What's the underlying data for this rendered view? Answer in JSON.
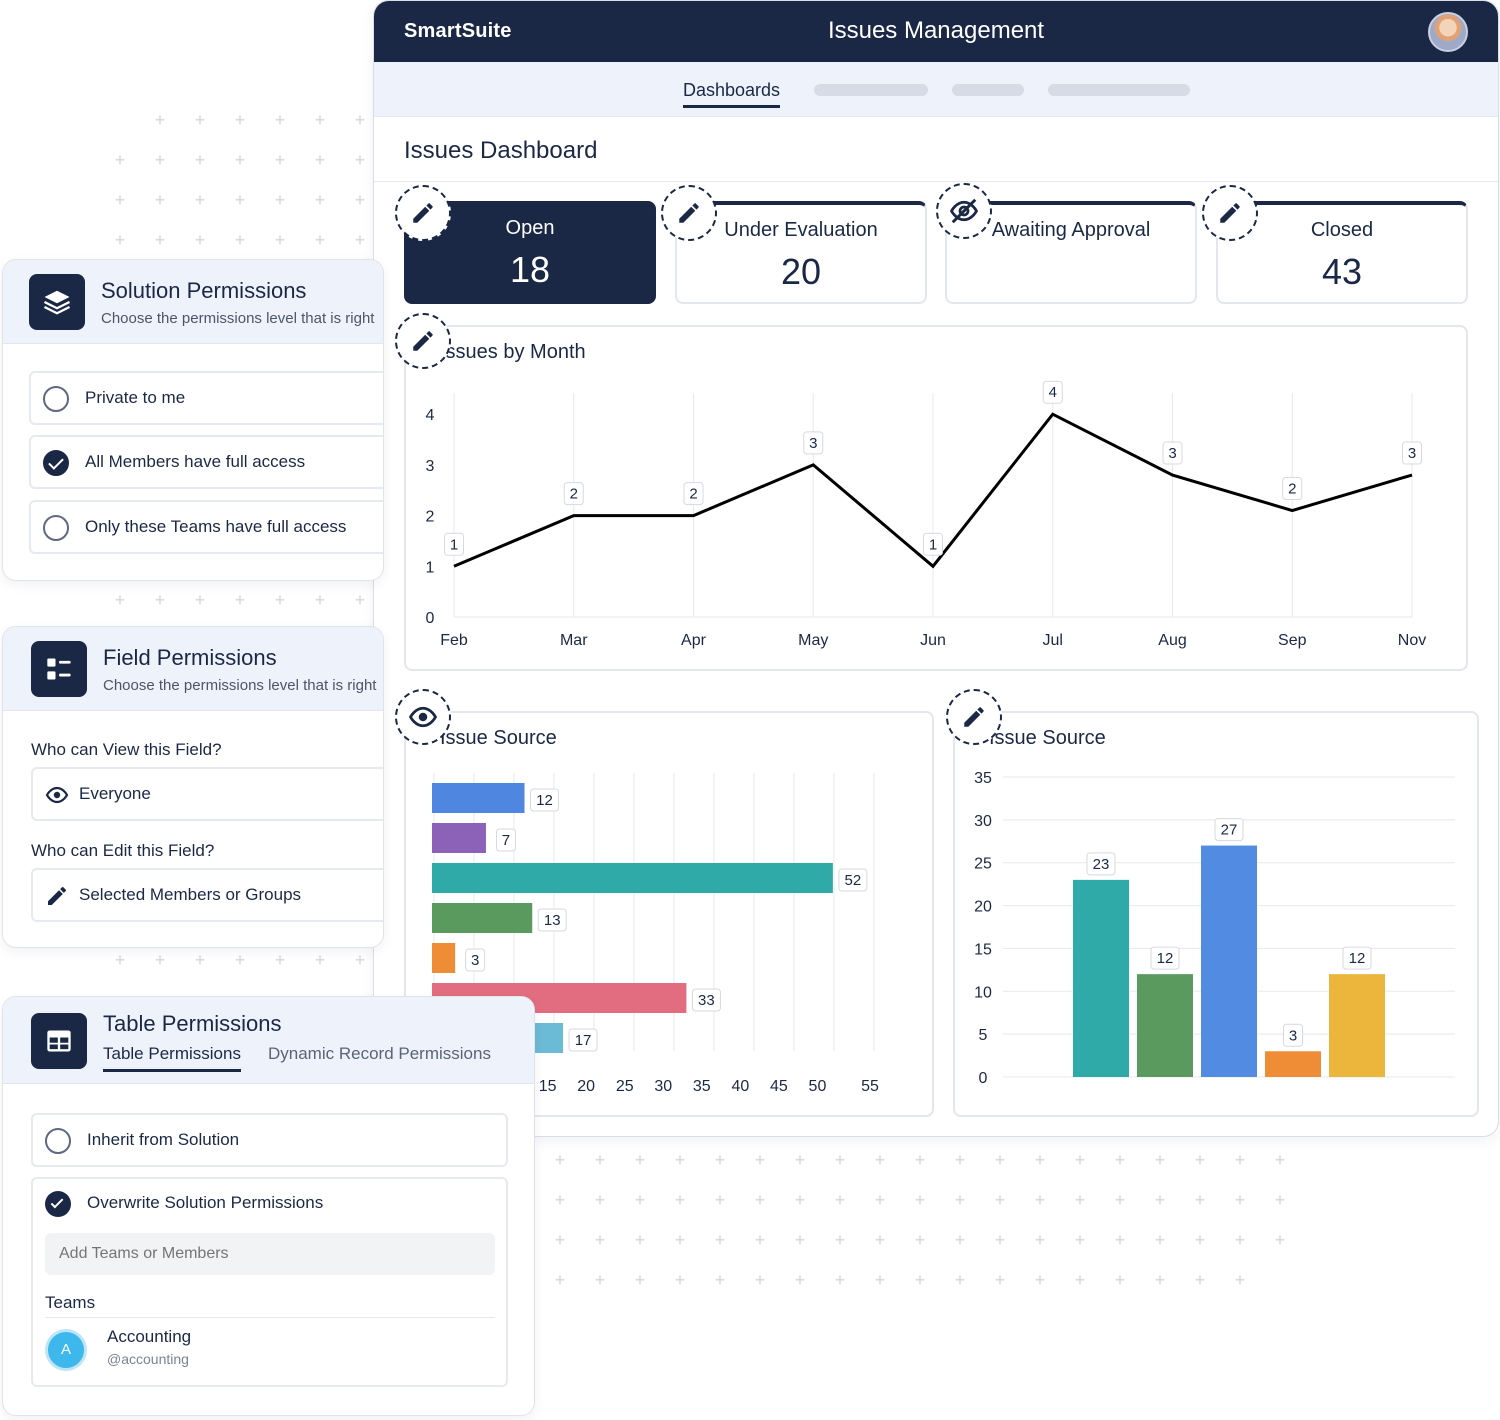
{
  "dashboard": {
    "brand": "SmartSuite",
    "app_title": "Issues Management",
    "tabs": [
      {
        "label": "Dashboards",
        "active": true
      }
    ],
    "title": "Issues Dashboard",
    "stats": [
      {
        "label": "Open",
        "value": "18",
        "active": true,
        "icon": "pencil-icon"
      },
      {
        "label": "Under Evaluation",
        "value": "20",
        "active": false,
        "icon": "pencil-icon"
      },
      {
        "label": "Awaiting Approval",
        "value": "",
        "active": false,
        "icon": "eye-off-icon"
      },
      {
        "label": "Closed",
        "value": "43",
        "active": false,
        "icon": "pencil-icon"
      }
    ],
    "panels": {
      "line_title": "Issues by Month",
      "hbar_title": "Issue Source",
      "vbar_title": "Issue Source"
    }
  },
  "chart_data": [
    {
      "type": "line",
      "title": "Issues by Month",
      "categories": [
        "Feb",
        "Mar",
        "Apr",
        "May",
        "Jun",
        "Jul",
        "Aug",
        "Sep",
        "Nov"
      ],
      "values": [
        1,
        2,
        2,
        3,
        1,
        4,
        2.8,
        2.1,
        2.8
      ],
      "data_labels": [
        "1",
        "2",
        "2",
        "3",
        "1",
        "4",
        "3",
        "2",
        "3"
      ],
      "yticks": [
        "0",
        "1",
        "2",
        "3",
        "4"
      ],
      "ylim": [
        0,
        4.3
      ],
      "grid": "vertical",
      "color": "#000000"
    },
    {
      "type": "bar",
      "orientation": "horizontal",
      "title": "Issue Source",
      "values": [
        12,
        7,
        52,
        13,
        3,
        33,
        17
      ],
      "colors": [
        "#4f86e0",
        "#8b62b8",
        "#2faaa8",
        "#5a9a5e",
        "#ef8c36",
        "#e26d80",
        "#6bbad6"
      ],
      "xticks": [
        "15",
        "20",
        "25",
        "30",
        "35",
        "40",
        "45",
        "50",
        "55"
      ],
      "xlim": [
        0,
        55
      ],
      "grid": "vertical"
    },
    {
      "type": "bar",
      "orientation": "vertical",
      "title": "Issue Source",
      "values": [
        23,
        12,
        27,
        3,
        12
      ],
      "colors": [
        "#2faaa8",
        "#5a9a5e",
        "#528be2",
        "#ef8c36",
        "#ecb63c"
      ],
      "yticks": [
        "0",
        "5",
        "10",
        "15",
        "20",
        "25",
        "30",
        "35"
      ],
      "ylim": [
        0,
        35
      ],
      "grid": "horizontal"
    }
  ],
  "solution_permissions": {
    "title": "Solution Permissions",
    "subtitle": "Choose the permissions level that is right",
    "icon": "layers-icon",
    "options": [
      {
        "label": "Private to me",
        "checked": false
      },
      {
        "label": "All Members have full access",
        "checked": true
      },
      {
        "label": "Only these Teams have full access",
        "checked": false
      }
    ]
  },
  "field_permissions": {
    "title": "Field Permissions",
    "subtitle": "Choose the permissions level that is right",
    "icon": "list-icon",
    "view_question": "Who can View this Field?",
    "view_value": "Everyone",
    "edit_question": "Who can Edit this Field?",
    "edit_value": "Selected Members or Groups"
  },
  "table_permissions": {
    "title": "Table Permissions",
    "icon": "table-icon",
    "tabs": [
      {
        "label": "Table Permissions",
        "active": true
      },
      {
        "label": "Dynamic Record Permissions",
        "active": false
      }
    ],
    "options": [
      {
        "label": "Inherit from Solution",
        "checked": false
      },
      {
        "label": "Overwrite Solution Permissions",
        "checked": true
      }
    ],
    "search_placeholder": "Add Teams or Members",
    "teams_label": "Teams",
    "team": {
      "initial": "A",
      "name": "Accounting",
      "handle": "@accounting"
    }
  }
}
